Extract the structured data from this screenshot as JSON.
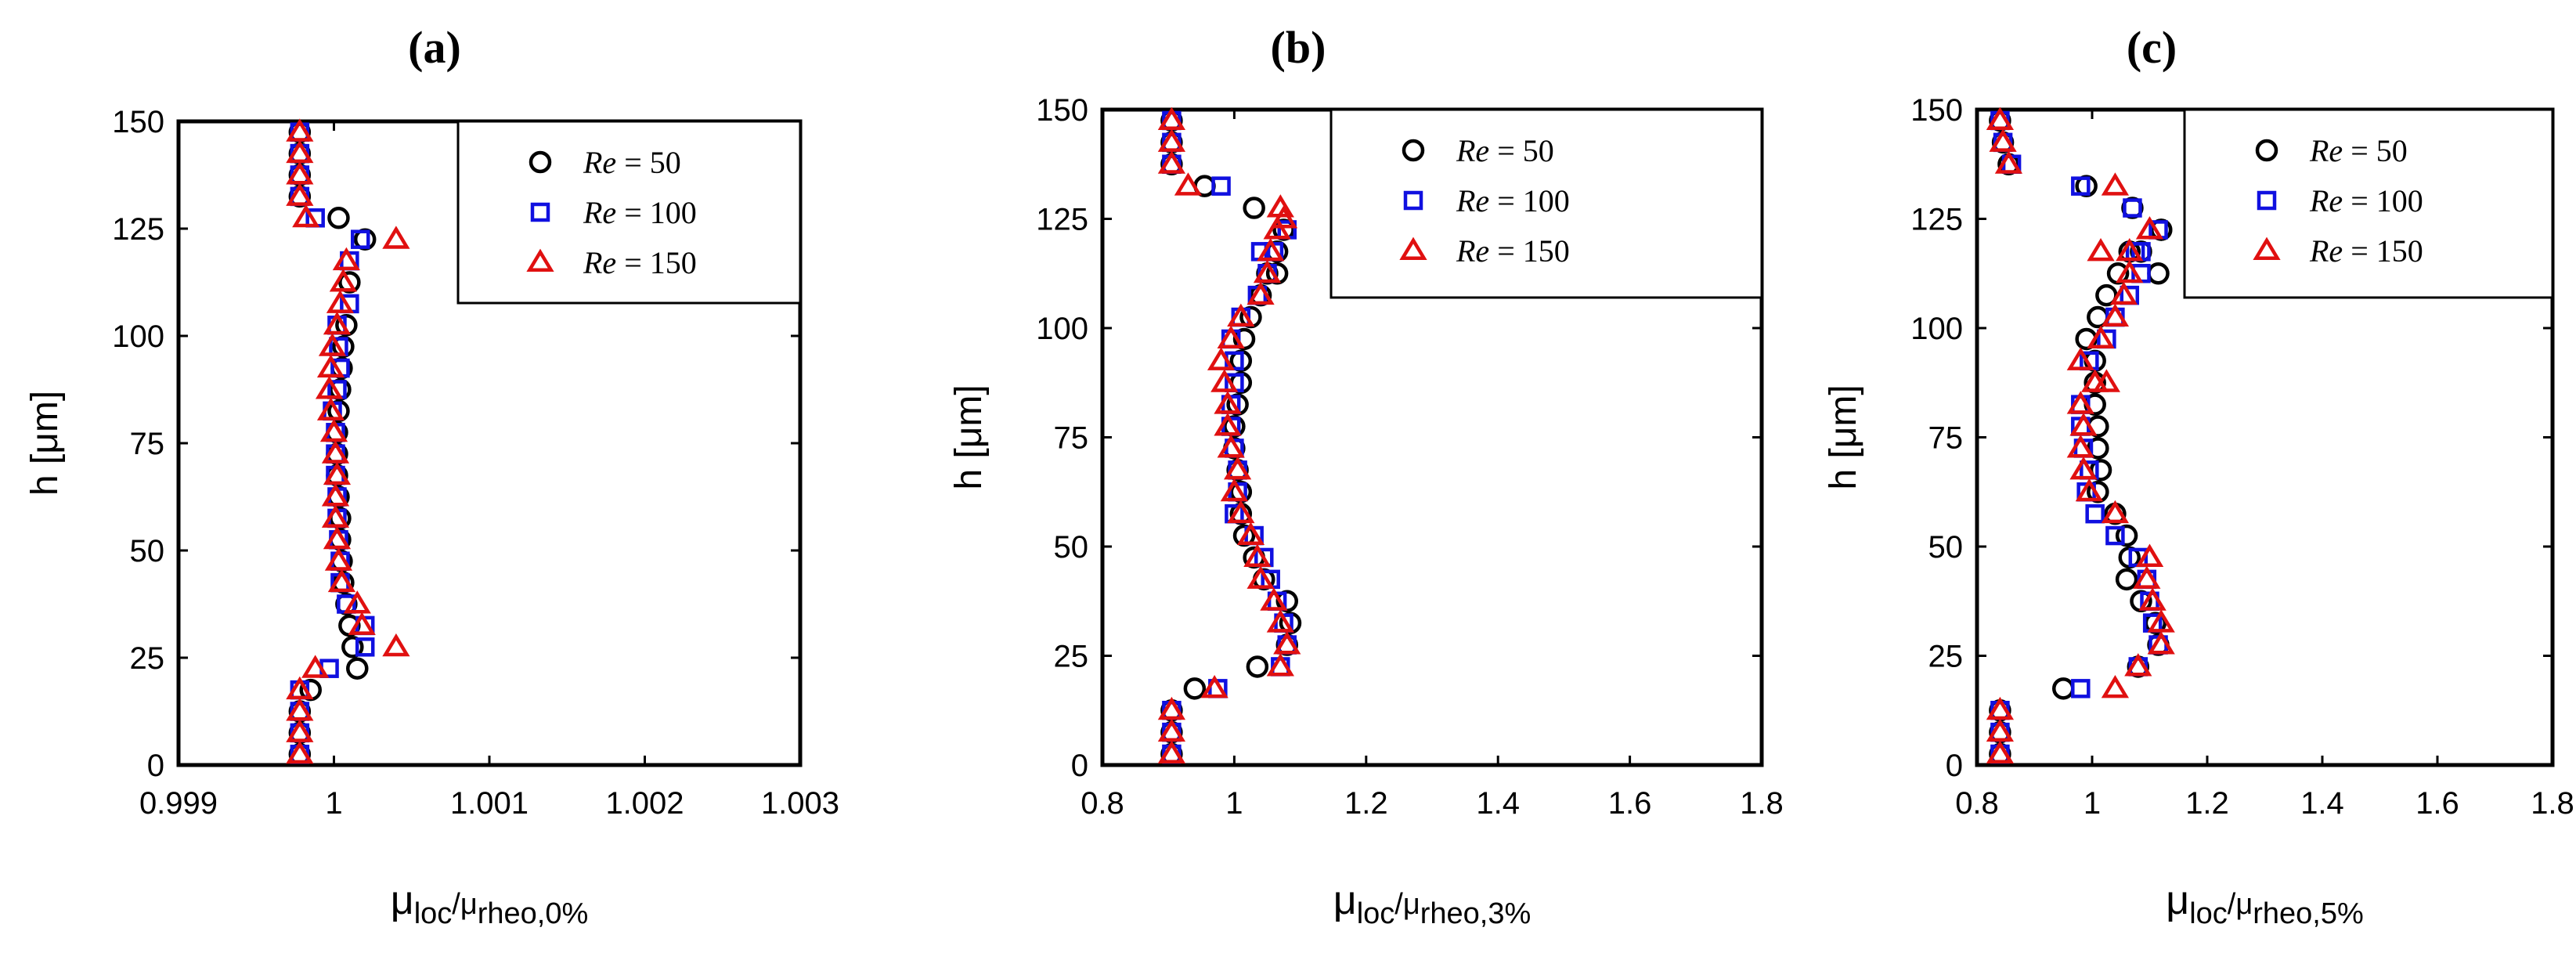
{
  "chart_data": [
    {
      "type": "scatter",
      "panel_label": "(a)",
      "xlabel": {
        "main": "μ",
        "sub1": "loc",
        "mid": "/μ",
        "sub2": "rheo,0%"
      },
      "ylabel": "h [μm]",
      "xlim": [
        0.999,
        1.003
      ],
      "ylim": [
        0,
        150
      ],
      "xticks": [
        0.999,
        1,
        1.001,
        1.002,
        1.003
      ],
      "xtick_labels": [
        "0.999",
        "1",
        "1.001",
        "1.002",
        "1.003"
      ],
      "yticks": [
        0,
        25,
        50,
        75,
        100,
        125,
        150
      ],
      "ytick_labels": [
        "0",
        "25",
        "50",
        "75",
        "100",
        "125",
        "150"
      ],
      "legend_position": "top-right",
      "series": [
        {
          "name": "Re = 50",
          "marker": "circle",
          "color": "#000000",
          "x": [
            0.99978,
            0.99978,
            0.99978,
            0.99985,
            1.00015,
            1.00012,
            1.0001,
            1.00008,
            1.00006,
            1.00005,
            1.00004,
            1.00004,
            1.00003,
            1.00002,
            1.00002,
            1.00002,
            1.00003,
            1.00004,
            1.00005,
            1.00006,
            1.00008,
            1.0001,
            1.0002,
            1.00003,
            0.99978,
            0.99978,
            0.99978,
            0.99978
          ],
          "y": [
            2.5,
            7.5,
            12.5,
            17.5,
            22.5,
            27.5,
            32.5,
            37.5,
            42.5,
            47.5,
            52.5,
            57.5,
            62.5,
            67.5,
            72.5,
            77.5,
            82.5,
            87.5,
            92.5,
            97.5,
            102.5,
            112.5,
            122.5,
            127.5,
            132.5,
            137.5,
            142.5,
            147.5
          ]
        },
        {
          "name": "Re = 100",
          "marker": "square",
          "color": "#1010e0",
          "x": [
            0.99978,
            0.99978,
            0.99978,
            0.99978,
            0.99997,
            1.0002,
            1.0002,
            1.00008,
            1.00004,
            1.00004,
            1.00003,
            1.00002,
            1.00002,
            1.00001,
            1.00001,
            1.00001,
            0.99999,
            1.00002,
            1.00004,
            1.00003,
            1.00002,
            1.0001,
            1.0001,
            1.00017,
            0.99988,
            0.99978,
            0.99978,
            0.99978,
            0.99978
          ],
          "y": [
            2.5,
            7.5,
            12.5,
            17.5,
            22.5,
            27.5,
            32.5,
            37.5,
            42.5,
            47.5,
            52.5,
            57.5,
            62.5,
            67.5,
            72.5,
            77.5,
            82.5,
            87.5,
            92.5,
            97.5,
            102.5,
            107.5,
            117.5,
            122.5,
            127.5,
            132.5,
            137.5,
            142.5,
            147.5
          ]
        },
        {
          "name": "Re = 150",
          "marker": "triangle",
          "color": "#e01010",
          "x": [
            0.99978,
            0.99978,
            0.99978,
            0.99978,
            0.99988,
            1.0004,
            1.00018,
            1.00015,
            1.00005,
            1.00003,
            1.00002,
            1.00001,
            1.00001,
            1.00002,
            1.00001,
            1.0,
            0.99998,
            0.99997,
            0.99998,
            0.99999,
            1.00002,
            1.00004,
            1.00006,
            1.00008,
            1.0004,
            0.99982,
            0.99978,
            0.99978,
            0.99978,
            0.99978
          ],
          "y": [
            2.5,
            7.5,
            12.5,
            17.5,
            22.5,
            27.5,
            32.5,
            37.5,
            42.5,
            47.5,
            52.5,
            57.5,
            62.5,
            67.5,
            72.5,
            77.5,
            82.5,
            87.5,
            92.5,
            97.5,
            102.5,
            107.5,
            112.5,
            117.5,
            122.5,
            127.5,
            132.5,
            137.5,
            142.5,
            147.5
          ]
        }
      ]
    },
    {
      "type": "scatter",
      "panel_label": "(b)",
      "xlabel": {
        "main": "μ",
        "sub1": "loc",
        "mid": "/μ",
        "sub2": "rheo,3%"
      },
      "ylabel": "h [μm]",
      "xlim": [
        0.8,
        1.8
      ],
      "ylim": [
        0,
        150
      ],
      "xticks": [
        0.8,
        1,
        1.2,
        1.4,
        1.6,
        1.8
      ],
      "xtick_labels": [
        "0.8",
        "1",
        "1.2",
        "1.4",
        "1.6",
        "1.8"
      ],
      "yticks": [
        0,
        25,
        50,
        75,
        100,
        125,
        150
      ],
      "ytick_labels": [
        "0",
        "25",
        "50",
        "75",
        "100",
        "125",
        "150"
      ],
      "legend_position": "top-right",
      "series": [
        {
          "name": "Re = 50",
          "marker": "circle",
          "color": "#000000",
          "x": [
            0.905,
            0.905,
            0.905,
            0.94,
            1.035,
            1.08,
            1.085,
            1.08,
            1.045,
            1.03,
            1.015,
            1.01,
            1.01,
            1.005,
            1.0,
            1.0,
            1.005,
            1.01,
            1.01,
            1.015,
            1.025,
            1.04,
            1.05,
            1.065,
            1.065,
            1.075,
            1.03,
            0.955,
            0.905,
            0.905,
            0.905
          ],
          "y": [
            2.5,
            7.5,
            12.5,
            17.5,
            22.5,
            27.5,
            32.5,
            37.5,
            42.5,
            47.5,
            52.5,
            57.5,
            62.5,
            67.5,
            72.5,
            77.5,
            82.5,
            87.5,
            92.5,
            97.5,
            102.5,
            107.5,
            112.5,
            117.5,
            112.5,
            122.5,
            127.5,
            132.5,
            137.5,
            142.5,
            147.5
          ]
        },
        {
          "name": "Re = 100",
          "marker": "square",
          "color": "#1010e0",
          "x": [
            0.905,
            0.905,
            0.905,
            0.975,
            1.07,
            1.08,
            1.075,
            1.065,
            1.055,
            1.045,
            1.03,
            1.0,
            1.005,
            1.005,
            1.0,
            0.995,
            0.995,
            1.0,
            1.0,
            0.995,
            1.01,
            1.035,
            1.05,
            1.06,
            1.04,
            1.08,
            0.98,
            0.905,
            0.905,
            0.905
          ],
          "y": [
            2.5,
            7.5,
            12.5,
            17.5,
            22.5,
            27.5,
            32.5,
            37.5,
            42.5,
            47.5,
            52.5,
            57.5,
            62.5,
            67.5,
            72.5,
            77.5,
            82.5,
            87.5,
            92.5,
            97.5,
            102.5,
            107.5,
            112.5,
            117.5,
            117.5,
            122.5,
            132.5,
            137.5,
            142.5,
            147.5
          ]
        },
        {
          "name": "Re = 150",
          "marker": "triangle",
          "color": "#e01010",
          "x": [
            0.905,
            0.905,
            0.905,
            0.97,
            1.07,
            1.08,
            1.07,
            1.06,
            1.04,
            1.035,
            1.025,
            1.01,
            1.0,
            1.005,
            0.995,
            0.99,
            0.99,
            0.985,
            0.98,
            0.995,
            1.01,
            1.04,
            1.05,
            1.055,
            1.065,
            1.075,
            1.07,
            0.93,
            0.905,
            0.905,
            0.905
          ],
          "y": [
            2.5,
            7.5,
            12.5,
            17.5,
            22.5,
            27.5,
            32.5,
            37.5,
            42.5,
            47.5,
            52.5,
            57.5,
            62.5,
            67.5,
            72.5,
            77.5,
            82.5,
            87.5,
            92.5,
            97.5,
            102.5,
            107.5,
            112.5,
            117.5,
            122.5,
            125,
            127.5,
            132.5,
            137.5,
            142.5,
            147.5
          ]
        }
      ]
    },
    {
      "type": "scatter",
      "panel_label": "(c)",
      "xlabel": {
        "main": "μ",
        "sub1": "loc",
        "mid": "/μ",
        "sub2": "rheo,5%"
      },
      "ylabel": "h [μm]",
      "xlim": [
        0.8,
        1.8
      ],
      "ylim": [
        0,
        150
      ],
      "xticks": [
        0.8,
        1,
        1.2,
        1.4,
        1.6,
        1.8
      ],
      "xtick_labels": [
        "0.8",
        "1",
        "1.2",
        "1.4",
        "1.6",
        "1.8"
      ],
      "yticks": [
        0,
        25,
        50,
        75,
        100,
        125,
        150
      ],
      "ytick_labels": [
        "0",
        "25",
        "50",
        "75",
        "100",
        "125",
        "150"
      ],
      "legend_position": "top-right",
      "series": [
        {
          "name": "Re = 50",
          "marker": "circle",
          "color": "#000000",
          "x": [
            0.84,
            0.84,
            0.84,
            0.95,
            1.08,
            1.115,
            1.11,
            1.085,
            1.06,
            1.065,
            1.06,
            1.04,
            1.01,
            1.015,
            1.01,
            1.01,
            1.005,
            1.005,
            1.005,
            0.99,
            1.01,
            1.025,
            1.045,
            1.065,
            1.085,
            1.115,
            1.12,
            1.12,
            1.07,
            0.99,
            0.855,
            0.845,
            0.84
          ],
          "y": [
            2.5,
            7.5,
            12.5,
            17.5,
            22.5,
            27.5,
            32.5,
            37.5,
            42.5,
            47.5,
            52.5,
            57.5,
            62.5,
            67.5,
            72.5,
            77.5,
            82.5,
            87.5,
            92.5,
            97.5,
            102.5,
            107.5,
            112.5,
            117.5,
            117.5,
            112.5,
            122.5,
            122.5,
            127.5,
            132.5,
            137.5,
            142.5,
            147.5
          ]
        },
        {
          "name": "Re = 100",
          "marker": "square",
          "color": "#1010e0",
          "x": [
            0.84,
            0.84,
            0.84,
            0.98,
            1.08,
            1.115,
            1.105,
            1.1,
            1.095,
            1.08,
            1.04,
            1.005,
            0.99,
            0.995,
            0.985,
            0.98,
            0.98,
            0.995,
            1.025,
            1.04,
            1.065,
            1.085,
            1.085,
            1.075,
            1.115,
            1.07,
            0.98,
            0.86,
            0.845,
            0.84
          ],
          "y": [
            2.5,
            7.5,
            12.5,
            17.5,
            22.5,
            27.5,
            32.5,
            37.5,
            42.5,
            47.5,
            52.5,
            57.5,
            62.5,
            67.5,
            72.5,
            77.5,
            82.5,
            92.5,
            97.5,
            102.5,
            107.5,
            112.5,
            117.5,
            117.5,
            122.5,
            127.5,
            132.5,
            137.5,
            142.5,
            147.5
          ]
        },
        {
          "name": "Re = 150",
          "marker": "triangle",
          "color": "#e01010",
          "x": [
            0.84,
            0.84,
            0.84,
            1.04,
            1.08,
            1.12,
            1.12,
            1.105,
            1.095,
            1.1,
            1.1,
            1.04,
            0.995,
            0.985,
            0.98,
            0.985,
            0.98,
            1.005,
            1.025,
            0.98,
            1.015,
            1.04,
            1.055,
            1.065,
            1.065,
            1.015,
            1.1,
            1.04,
            0.855,
            0.845,
            0.84
          ],
          "y": [
            2.5,
            7.5,
            12.5,
            17.5,
            22.5,
            27.5,
            32.5,
            37.5,
            42.5,
            47.5,
            47.5,
            57.5,
            62.5,
            67.5,
            72.5,
            77.5,
            82.5,
            87.5,
            87.5,
            92.5,
            97.5,
            102.5,
            107.5,
            112.5,
            117.5,
            117.5,
            122.5,
            132.5,
            137.5,
            142.5,
            147.5
          ]
        }
      ]
    }
  ]
}
